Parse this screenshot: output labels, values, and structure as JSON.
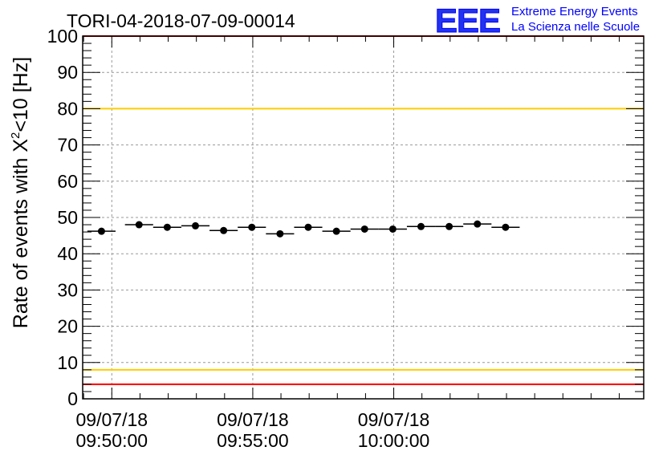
{
  "title": "TORI-04-2018-07-09-00014",
  "logo": {
    "mark": "EEE",
    "line1": "Extreme Energy Events",
    "line2": "La Scienza nelle Scuole"
  },
  "colors": {
    "limit_red": "#ff0000",
    "limit_yellow": "#ffcc00",
    "marker": "#000000",
    "logo_blue": "#0000ff",
    "grid": "#999999"
  },
  "chart_data": {
    "type": "scatter",
    "title": "TORI-04-2018-07-09-00014",
    "xlabel": "",
    "ylabel": "Rate of events with X²<10 [Hz]",
    "ylabel_parts": {
      "before": "Rate of events with X",
      "sup": "2",
      "after": "<10 [Hz]"
    },
    "ylim": [
      0,
      100
    ],
    "yticks": [
      "0",
      "10",
      "20",
      "30",
      "40",
      "50",
      "60",
      "70",
      "80",
      "90",
      "100"
    ],
    "xlim": [
      "09:48:58",
      "10:08:52"
    ],
    "xticks": [
      {
        "t": "09:50:00",
        "date": "09/07/18",
        "time": "09:50:00"
      },
      {
        "t": "09:55:00",
        "date": "09/07/18",
        "time": "09:55:00"
      },
      {
        "t": "10:00:00",
        "date": "09/07/18",
        "time": "10:00:00"
      }
    ],
    "grid": true,
    "limit_lines": [
      {
        "y": 100,
        "color": "red"
      },
      {
        "y": 80,
        "color": "yellow"
      },
      {
        "y": 8,
        "color": "yellow"
      },
      {
        "y": 4,
        "color": "red"
      }
    ],
    "series": [
      {
        "points": [
          {
            "x": "09:49:38",
            "y": 46.2
          },
          {
            "x": "09:50:58",
            "y": 48.0
          },
          {
            "x": "09:51:58",
            "y": 47.3
          },
          {
            "x": "09:52:58",
            "y": 47.7
          },
          {
            "x": "09:53:58",
            "y": 46.4
          },
          {
            "x": "09:54:58",
            "y": 47.3
          },
          {
            "x": "09:55:58",
            "y": 45.5
          },
          {
            "x": "09:56:58",
            "y": 47.3
          },
          {
            "x": "09:57:58",
            "y": 46.2
          },
          {
            "x": "09:58:58",
            "y": 46.8
          },
          {
            "x": "09:59:58",
            "y": 46.8
          },
          {
            "x": "10:00:58",
            "y": 47.5
          },
          {
            "x": "10:01:58",
            "y": 47.5
          },
          {
            "x": "10:02:58",
            "y": 48.2
          },
          {
            "x": "10:03:58",
            "y": 47.3
          }
        ],
        "bin_minutes": 1
      }
    ]
  }
}
